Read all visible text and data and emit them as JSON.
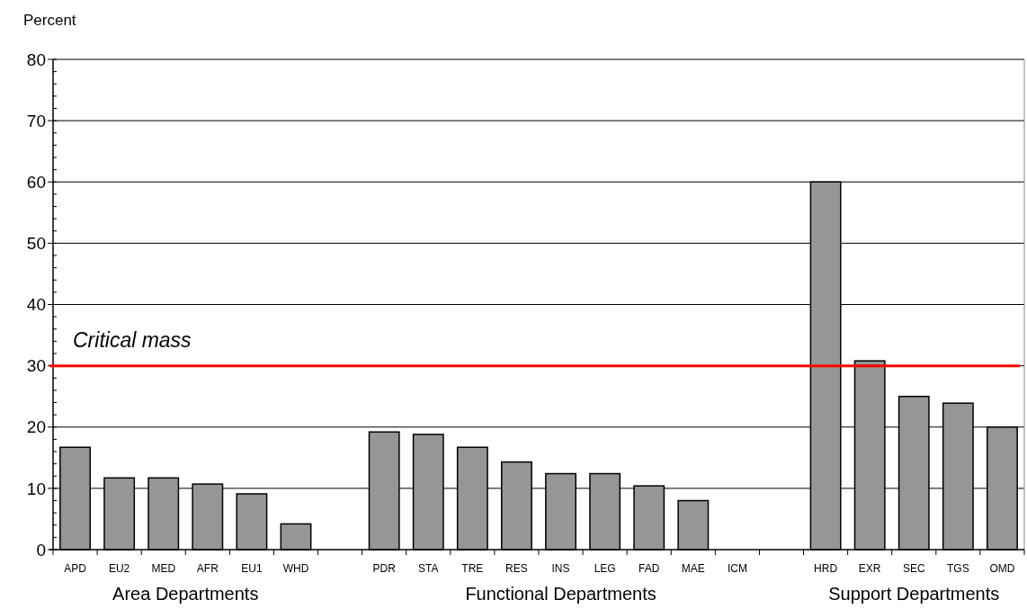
{
  "chart_data": {
    "type": "bar",
    "ylabel": "Percent",
    "categories": [
      "APD",
      "EU2",
      "MED",
      "AFR",
      "EU1",
      "WHD",
      null,
      "PDR",
      "STA",
      "TRE",
      "RES",
      "INS",
      "LEG",
      "FAD",
      "MAE",
      "ICM",
      null,
      "HRD",
      "EXR",
      "SEC",
      "TGS",
      "OMD"
    ],
    "values": [
      16.7,
      11.7,
      11.7,
      10.7,
      9.1,
      4.2,
      null,
      19.2,
      18.8,
      16.7,
      14.3,
      12.4,
      12.4,
      10.4,
      8.0,
      0,
      null,
      60,
      30.8,
      25.0,
      23.9,
      20.0
    ],
    "color": "#969696",
    "ylim": [
      0,
      80
    ],
    "yticks": [
      0,
      10,
      20,
      30,
      40,
      50,
      60,
      70,
      80
    ],
    "grid": "y",
    "ref_lines": [
      {
        "axis": "y",
        "value": 30,
        "label": "Critical mass",
        "color": "#ff0000"
      }
    ],
    "annotations": [
      "Area Departments",
      "Functional Departments",
      "Support Departments"
    ]
  }
}
